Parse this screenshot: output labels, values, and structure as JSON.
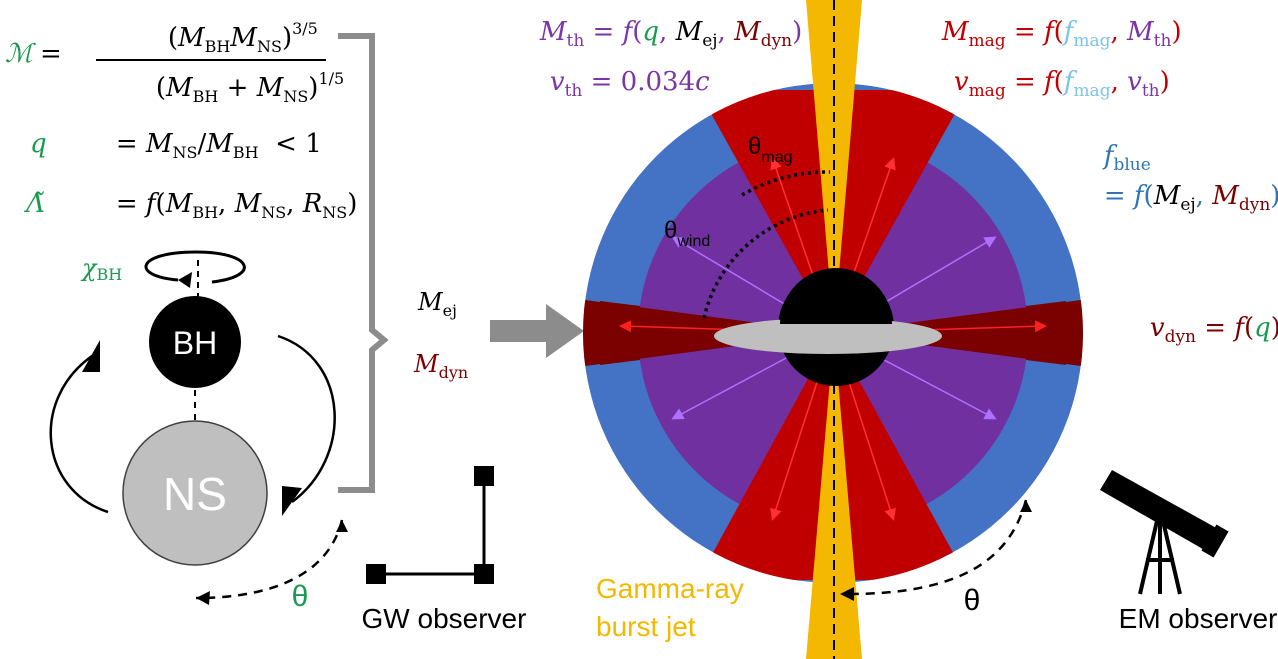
{
  "colors": {
    "green": "#1a9a4f",
    "purple": "#7a35a8",
    "red": "#c00000",
    "darkred": "#7b0000",
    "blue": "#4472c4",
    "lightblue": "#7cc4e8",
    "gold": "#f5b800",
    "violet": "#7030a0",
    "black": "#000000",
    "gray": "#8c8c8c",
    "lightgray": "#bfbfbf"
  },
  "left_equations": {
    "chirp_symbol": "ℳ",
    "chirp_numerator": "(M_BH M_NS)^3/5",
    "chirp_denominator": "(M_BH + M_NS)^1/5",
    "mass_ratio_symbol": "q",
    "mass_ratio_rhs": "= M_NS/M_BH  < 1",
    "tidal_symbol": "Λ̃",
    "tidal_rhs": "= f(M_BH, M_NS, R_NS)",
    "spin_symbol": "χ_BH"
  },
  "binary": {
    "bh_label": "BH",
    "ns_label": "NS",
    "theta_label": "θ"
  },
  "middle": {
    "ej_label": "M_ej",
    "dyn_label": "M_dyn"
  },
  "top_equations": {
    "m_th": "M_th = f(q, M_ej, M_dyn)",
    "v_th": "v_th = 0.034c",
    "m_mag": "M_mag = f(f_mag, M_th)",
    "v_mag": "v_mag = f(f_mag, v_th)"
  },
  "right_equations": {
    "f_blue_lhs": "f_blue",
    "f_blue_rhs": "= f(M_ej, M_dyn)",
    "v_dyn": "v_dyn = f(q)"
  },
  "angles": {
    "theta_mag": "θmag",
    "theta_wind": "θwind",
    "theta_em": "θ"
  },
  "observers": {
    "gw_label": "GW observer",
    "em_label": "EM observer",
    "jet_label_line1": "Gamma-ray",
    "jet_label_line2": "burst jet"
  }
}
